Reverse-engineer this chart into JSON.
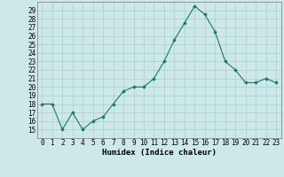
{
  "x": [
    0,
    1,
    2,
    3,
    4,
    5,
    6,
    7,
    8,
    9,
    10,
    11,
    12,
    13,
    14,
    15,
    16,
    17,
    18,
    19,
    20,
    21,
    22,
    23
  ],
  "y": [
    18,
    18,
    15,
    17,
    15,
    16,
    16.5,
    18,
    19.5,
    20,
    20,
    21,
    23,
    25.5,
    27.5,
    29.5,
    28.5,
    26.5,
    23,
    22,
    20.5,
    20.5,
    21,
    20.5
  ],
  "line_color": "#1a7a5e",
  "marker_color": "#1a7a5e",
  "bg_color": "#cce8e8",
  "grid_color": "#aacfcf",
  "xlabel": "Humidex (Indice chaleur)",
  "ylim": [
    14.0,
    30.0
  ],
  "xlim": [
    -0.5,
    23.5
  ],
  "yticks": [
    15,
    16,
    17,
    18,
    19,
    20,
    21,
    22,
    23,
    24,
    25,
    26,
    27,
    28,
    29
  ],
  "xticks": [
    0,
    1,
    2,
    3,
    4,
    5,
    6,
    7,
    8,
    9,
    10,
    11,
    12,
    13,
    14,
    15,
    16,
    17,
    18,
    19,
    20,
    21,
    22,
    23
  ],
  "xlabel_fontsize": 6.5,
  "tick_fontsize": 5.5
}
